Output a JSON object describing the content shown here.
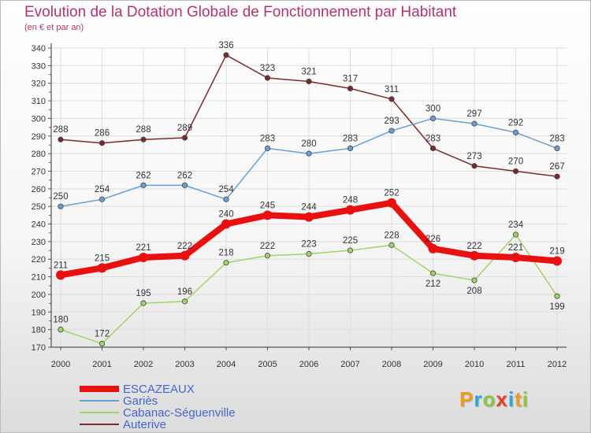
{
  "title": "Evolution de la Dotation Globale de Fonctionnement par Habitant",
  "subtitle": "(en € et par an)",
  "logo": {
    "letters": [
      "P",
      "r",
      "o",
      "x",
      "i",
      "t",
      "i"
    ],
    "colors": [
      "#f29a1c",
      "#2aa6e0",
      "#8cc63f",
      "#e8412a",
      "#2aa6e0",
      "#f29a1c",
      "#8cc63f"
    ]
  },
  "chart_data": {
    "type": "line",
    "title": "Evolution de la Dotation Globale de Fonctionnement par Habitant",
    "subtitle": "(en € et par an)",
    "x": [
      "2000",
      "2001",
      "2002",
      "2003",
      "2004",
      "2005",
      "2006",
      "2007",
      "2008",
      "2009",
      "2010",
      "2011",
      "2012"
    ],
    "ylim": [
      170,
      340
    ],
    "yticks": [
      170,
      180,
      190,
      200,
      210,
      220,
      230,
      240,
      250,
      260,
      270,
      280,
      290,
      300,
      310,
      320,
      330,
      340
    ],
    "grid": true,
    "legend_position": "bottom-left",
    "series": [
      {
        "name": "Auterive",
        "color": "#7a2a2a",
        "values": [
          288,
          286,
          288,
          289,
          336,
          323,
          321,
          317,
          311,
          283,
          273,
          270,
          267
        ]
      },
      {
        "name": "Gariès",
        "color": "#6a9fd4",
        "values": [
          250,
          254,
          262,
          262,
          254,
          283,
          280,
          283,
          293,
          300,
          297,
          292,
          283
        ]
      },
      {
        "name": "Cabanac-Séguenville",
        "color": "#a0d468",
        "values": [
          180,
          172,
          195,
          196,
          218,
          222,
          223,
          225,
          228,
          212,
          208,
          234,
          199
        ]
      },
      {
        "name": "ESCAZEAUX",
        "color": "#e8110f",
        "values": [
          211,
          215,
          221,
          222,
          240,
          245,
          244,
          248,
          252,
          226,
          222,
          221,
          219
        ]
      }
    ],
    "legend": [
      "ESCAZEAUX",
      "Gariès",
      "Cabanac-Séguenville",
      "Auterive"
    ]
  }
}
